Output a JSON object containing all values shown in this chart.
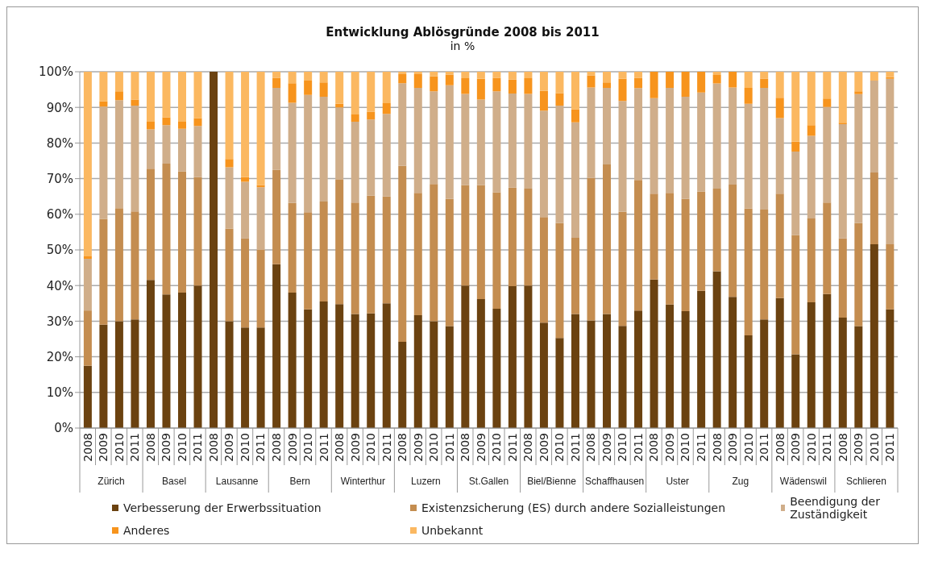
{
  "chart_data": {
    "type": "bar",
    "title": "Entwicklung Ablösgründe 2008 bis 2011",
    "subtitle": "in %",
    "stacked": true,
    "grid": "y",
    "legend": "bottom",
    "categories": [
      "2008",
      "2009",
      "2010",
      "2011",
      "2008",
      "2009",
      "2010",
      "2011",
      "2008",
      "2009",
      "2010",
      "2011",
      "2008",
      "2009",
      "2010",
      "2011",
      "2008",
      "2009",
      "2010",
      "2011",
      "2008",
      "2009",
      "2010",
      "2011",
      "2008",
      "2009",
      "2010",
      "2011",
      "2008",
      "2009",
      "2010",
      "2011",
      "2008",
      "2009",
      "2010",
      "2011",
      "2008",
      "2009",
      "2010",
      "2011",
      "2008",
      "2009",
      "2010",
      "2011",
      "2008",
      "2009",
      "2010",
      "2011",
      "2008",
      "2009",
      "2010",
      "2011"
    ],
    "annotations": [
      "Zürich",
      "Basel",
      "Lausanne",
      "Bern",
      "Winterthur",
      "Luzern",
      "St.Gallen",
      "Biel/Bienne",
      "Schaffhausen",
      "Uster",
      "Zug",
      "Wädenswil",
      "Schlieren"
    ],
    "ylim": [
      0,
      100
    ],
    "yticks": [
      {
        "value": 0,
        "label": "0%"
      },
      {
        "value": 10,
        "label": "10%"
      },
      {
        "value": 20,
        "label": "20%"
      },
      {
        "value": 30,
        "label": "30%"
      },
      {
        "value": 40,
        "label": "40%"
      },
      {
        "value": 50,
        "label": "50%"
      },
      {
        "value": 60,
        "label": "60%"
      },
      {
        "value": 70,
        "label": "70%"
      },
      {
        "value": 80,
        "label": "80%"
      },
      {
        "value": 90,
        "label": "90%"
      },
      {
        "value": 100,
        "label": "100%"
      }
    ],
    "series": [
      {
        "name": "Verbesserung der Erwerbssituation",
        "color": "#6b4210",
        "values": [
          17.5,
          29,
          30,
          30.5,
          41.6,
          37.5,
          38,
          40,
          100,
          30,
          28.2,
          28.2,
          46,
          38,
          33.3,
          35.5,
          34.8,
          32,
          32.2,
          35,
          24.2,
          31.7,
          30,
          28.6,
          40,
          36.2,
          33.5,
          39.8,
          40,
          29.6,
          25.3,
          32,
          30.2,
          32,
          28.7,
          33,
          41.7,
          34.7,
          32.8,
          38.5,
          44,
          36.8,
          26,
          30.5,
          36.5,
          20.7,
          35.3,
          37.6,
          31,
          28.6,
          51.6,
          33.3
        ]
      },
      {
        "name": "Existenzsicherung (ES) durch andere Sozialleistungen",
        "color": "#c48d50",
        "values": [
          15.5,
          29.7,
          31.7,
          30.3,
          31.2,
          36.7,
          34,
          30.4,
          0,
          26,
          25,
          21.8,
          26.5,
          25.2,
          27.3,
          28.1,
          34.9,
          31.3,
          33,
          30,
          49.4,
          34.3,
          38.5,
          35.7,
          28.2,
          32,
          32.7,
          27.7,
          27.2,
          29.6,
          32.2,
          21.4,
          40,
          42,
          32,
          36.6,
          24.1,
          31.3,
          31.5,
          27.9,
          23.2,
          31.5,
          35.6,
          30.8,
          29.3,
          33.5,
          23.5,
          25.7,
          22.2,
          28.9,
          20.1,
          18.3
        ]
      },
      {
        "name": "Beendigung der Zuständigkeit",
        "color": "#d0ae8a",
        "values": [
          14.5,
          31.5,
          30.3,
          29.7,
          11,
          10.8,
          12,
          14.4,
          0,
          17.2,
          15.9,
          17.6,
          23,
          28.1,
          32.9,
          29.4,
          20.3,
          22.7,
          21.4,
          23.2,
          23.2,
          29.5,
          26,
          31.9,
          25.6,
          24,
          28.3,
          26.4,
          26.6,
          29.9,
          33,
          32.4,
          25.4,
          21.5,
          31.1,
          25.8,
          26.8,
          29.5,
          28.7,
          27.8,
          29.5,
          27.3,
          29.4,
          34.2,
          21.2,
          23.4,
          23.2,
          26.8,
          32.1,
          36.2,
          25.8,
          46.4
        ]
      },
      {
        "name": "Anderes",
        "color": "#f7941d",
        "values": [
          0.7,
          1.5,
          2.5,
          1.7,
          2.2,
          2.2,
          2,
          2.2,
          0,
          2.3,
          1.3,
          0.6,
          2.8,
          5.5,
          4,
          4,
          1,
          2,
          2.2,
          3,
          2.5,
          3.8,
          4.2,
          3,
          4.4,
          5.8,
          3.8,
          3.9,
          4.4,
          5.5,
          3.5,
          3.7,
          3.4,
          1.5,
          6.2,
          2.9,
          7.4,
          4.5,
          7,
          5.8,
          2.4,
          4.4,
          4.5,
          2.6,
          5.7,
          2.8,
          3,
          2.4,
          0.4,
          0.8,
          0,
          0.5
        ]
      },
      {
        "name": "Unbekannt",
        "color": "#fbb861",
        "values": [
          51.8,
          8.3,
          5.5,
          7.8,
          14,
          12.8,
          14,
          13,
          0,
          24.5,
          29.6,
          31.8,
          1.7,
          3.2,
          2.5,
          3,
          9,
          12,
          11.2,
          8.8,
          0.7,
          0.7,
          1.3,
          0.8,
          1.8,
          2,
          1.7,
          2.2,
          1.8,
          5.4,
          6,
          10.5,
          1,
          3,
          2,
          1.7,
          0,
          0,
          0,
          0,
          0.9,
          0,
          4.5,
          1.9,
          7.3,
          19.6,
          15,
          7.5,
          14.3,
          5.5,
          2.5,
          1.5
        ]
      }
    ]
  }
}
